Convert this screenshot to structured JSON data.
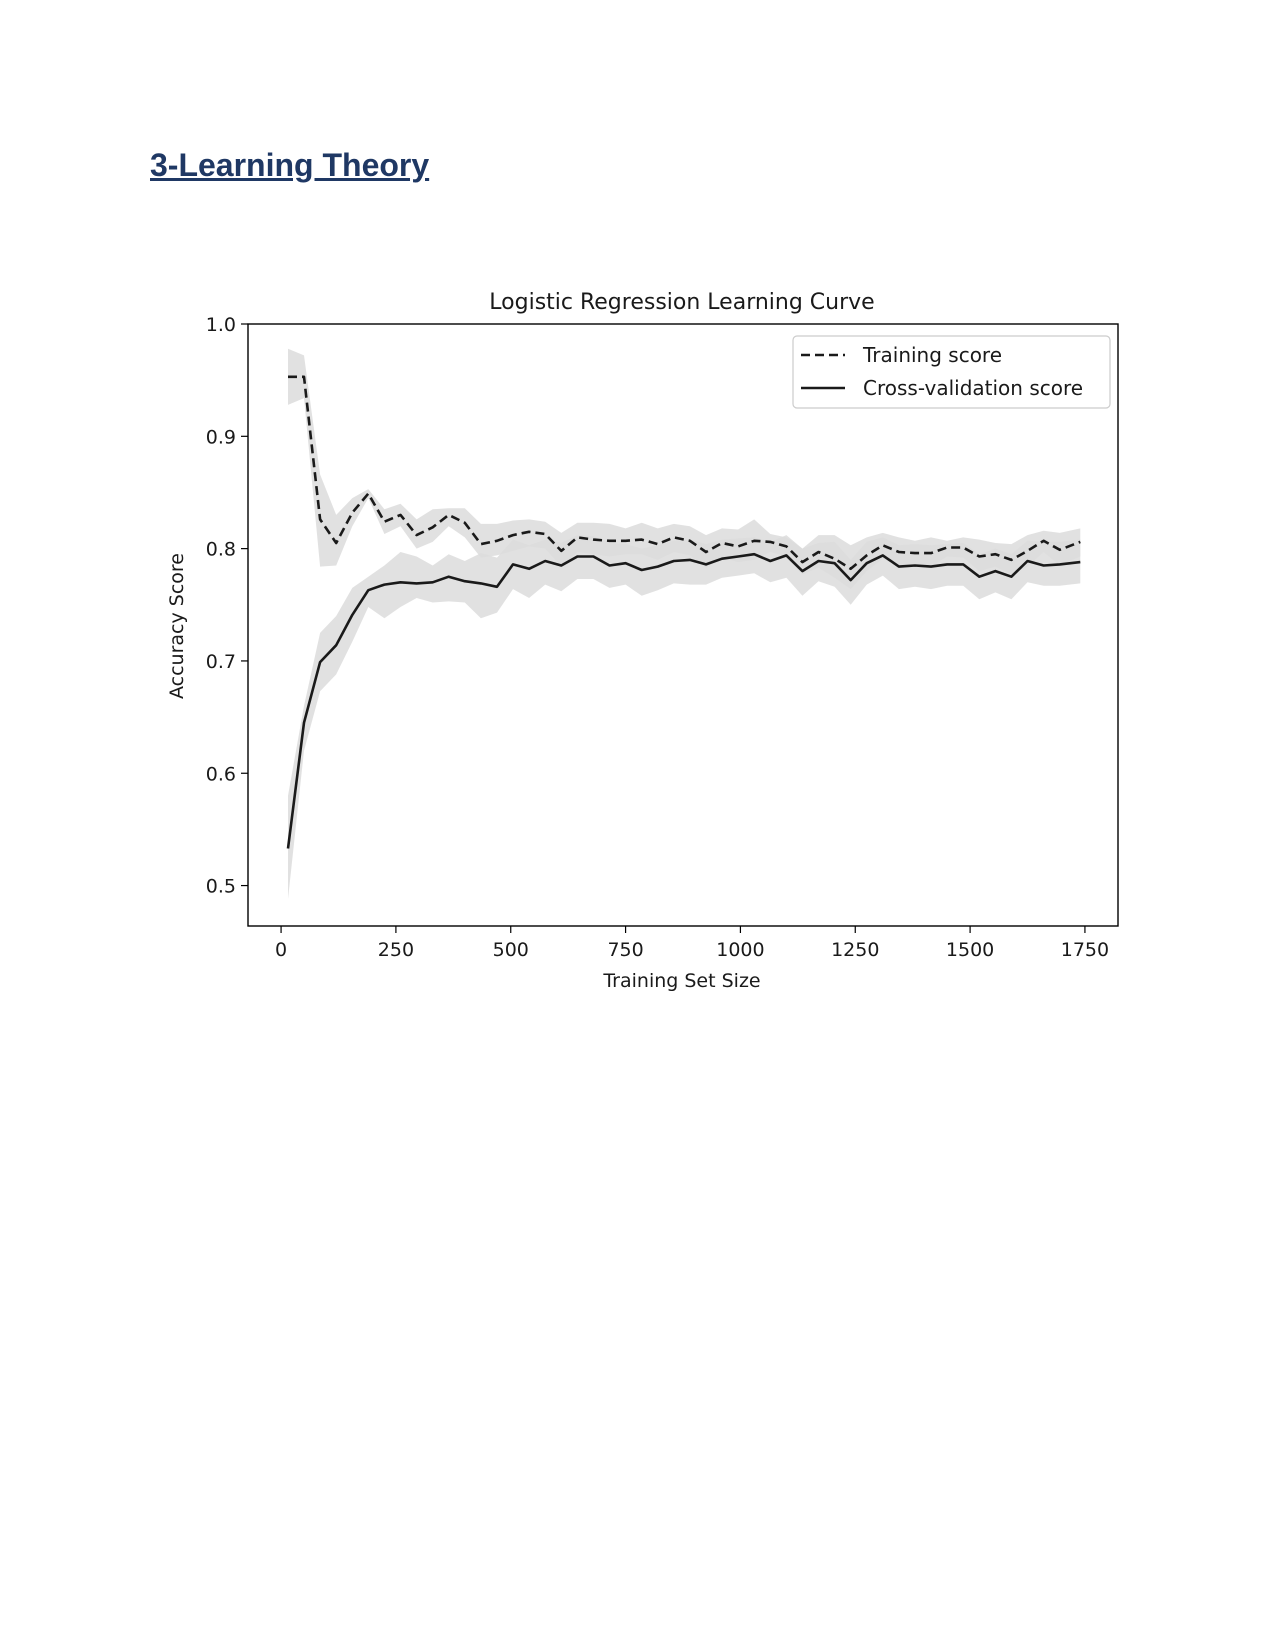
{
  "document": {
    "heading": "3-Learning Theory"
  },
  "colors": {
    "heading": "#1f3864",
    "line": "#1a1a1a",
    "band": "#dcdcdc"
  },
  "chart_data": {
    "type": "line",
    "title": "Logistic Regression Learning Curve",
    "xlabel": "Training Set Size",
    "ylabel": "Accuracy Score",
    "xlim": [
      -72,
      1822
    ],
    "ylim": [
      0.464,
      1.0
    ],
    "xticks": [
      0,
      250,
      500,
      750,
      1000,
      1250,
      1500,
      1750
    ],
    "yticks": [
      0.5,
      0.6,
      0.7,
      0.8,
      0.9,
      1.0
    ],
    "ytick_labels": [
      "0.5",
      "0.6",
      "0.7",
      "0.8",
      "0.9",
      "1.0"
    ],
    "grid": false,
    "legend_position": "top-right",
    "x": [
      15,
      50,
      85,
      120,
      155,
      190,
      225,
      260,
      295,
      330,
      365,
      400,
      435,
      470,
      505,
      540,
      575,
      610,
      645,
      680,
      715,
      750,
      785,
      820,
      855,
      890,
      925,
      960,
      995,
      1030,
      1065,
      1100,
      1135,
      1170,
      1205,
      1240,
      1275,
      1310,
      1345,
      1380,
      1415,
      1450,
      1485,
      1520,
      1555,
      1590,
      1625,
      1660,
      1695,
      1740
    ],
    "series": [
      {
        "name": "Training score",
        "style": "dashed",
        "values": [
          0.953,
          0.953,
          0.826,
          0.805,
          0.832,
          0.849,
          0.824,
          0.83,
          0.812,
          0.819,
          0.83,
          0.823,
          0.804,
          0.807,
          0.812,
          0.815,
          0.813,
          0.798,
          0.81,
          0.808,
          0.807,
          0.807,
          0.808,
          0.804,
          0.81,
          0.807,
          0.797,
          0.805,
          0.802,
          0.807,
          0.806,
          0.802,
          0.788,
          0.797,
          0.791,
          0.782,
          0.794,
          0.803,
          0.797,
          0.796,
          0.796,
          0.801,
          0.801,
          0.793,
          0.795,
          0.79,
          0.798,
          0.807,
          0.799,
          0.806
        ],
        "upper": [
          0.978,
          0.972,
          0.866,
          0.83,
          0.845,
          0.853,
          0.835,
          0.84,
          0.826,
          0.835,
          0.836,
          0.836,
          0.822,
          0.822,
          0.825,
          0.826,
          0.824,
          0.814,
          0.823,
          0.823,
          0.822,
          0.818,
          0.823,
          0.818,
          0.822,
          0.82,
          0.812,
          0.818,
          0.817,
          0.826,
          0.813,
          0.81,
          0.8,
          0.812,
          0.812,
          0.803,
          0.81,
          0.814,
          0.81,
          0.807,
          0.81,
          0.807,
          0.81,
          0.808,
          0.805,
          0.804,
          0.812,
          0.816,
          0.814,
          0.818
        ],
        "lower": [
          0.928,
          0.934,
          0.784,
          0.785,
          0.82,
          0.845,
          0.813,
          0.82,
          0.8,
          0.806,
          0.82,
          0.81,
          0.792,
          0.794,
          0.798,
          0.802,
          0.8,
          0.784,
          0.797,
          0.795,
          0.793,
          0.795,
          0.795,
          0.79,
          0.797,
          0.794,
          0.783,
          0.792,
          0.788,
          0.79,
          0.797,
          0.793,
          0.777,
          0.783,
          0.774,
          0.764,
          0.78,
          0.791,
          0.785,
          0.784,
          0.784,
          0.793,
          0.792,
          0.78,
          0.784,
          0.777,
          0.784,
          0.797,
          0.785,
          0.793
        ]
      },
      {
        "name": "Cross-validation score",
        "style": "solid",
        "values": [
          0.533,
          0.645,
          0.699,
          0.714,
          0.741,
          0.763,
          0.768,
          0.77,
          0.769,
          0.77,
          0.775,
          0.771,
          0.769,
          0.766,
          0.786,
          0.782,
          0.789,
          0.785,
          0.793,
          0.793,
          0.785,
          0.787,
          0.781,
          0.784,
          0.789,
          0.79,
          0.786,
          0.791,
          0.793,
          0.795,
          0.789,
          0.794,
          0.78,
          0.789,
          0.787,
          0.772,
          0.787,
          0.794,
          0.784,
          0.785,
          0.784,
          0.786,
          0.786,
          0.775,
          0.78,
          0.775,
          0.789,
          0.785,
          0.786,
          0.788
        ],
        "upper": [
          0.58,
          0.66,
          0.725,
          0.74,
          0.765,
          0.775,
          0.785,
          0.797,
          0.793,
          0.785,
          0.795,
          0.789,
          0.796,
          0.792,
          0.808,
          0.803,
          0.808,
          0.805,
          0.812,
          0.811,
          0.805,
          0.804,
          0.8,
          0.803,
          0.807,
          0.808,
          0.804,
          0.808,
          0.809,
          0.81,
          0.806,
          0.812,
          0.8,
          0.805,
          0.806,
          0.79,
          0.806,
          0.81,
          0.803,
          0.804,
          0.803,
          0.804,
          0.805,
          0.795,
          0.8,
          0.795,
          0.807,
          0.806,
          0.806,
          0.808
        ],
        "lower": [
          0.488,
          0.62,
          0.673,
          0.688,
          0.717,
          0.748,
          0.738,
          0.748,
          0.756,
          0.752,
          0.753,
          0.752,
          0.738,
          0.743,
          0.764,
          0.756,
          0.768,
          0.762,
          0.773,
          0.773,
          0.765,
          0.768,
          0.758,
          0.763,
          0.769,
          0.768,
          0.768,
          0.774,
          0.776,
          0.778,
          0.77,
          0.774,
          0.758,
          0.771,
          0.766,
          0.75,
          0.768,
          0.776,
          0.764,
          0.766,
          0.764,
          0.767,
          0.767,
          0.755,
          0.761,
          0.755,
          0.77,
          0.767,
          0.767,
          0.769
        ]
      }
    ]
  }
}
